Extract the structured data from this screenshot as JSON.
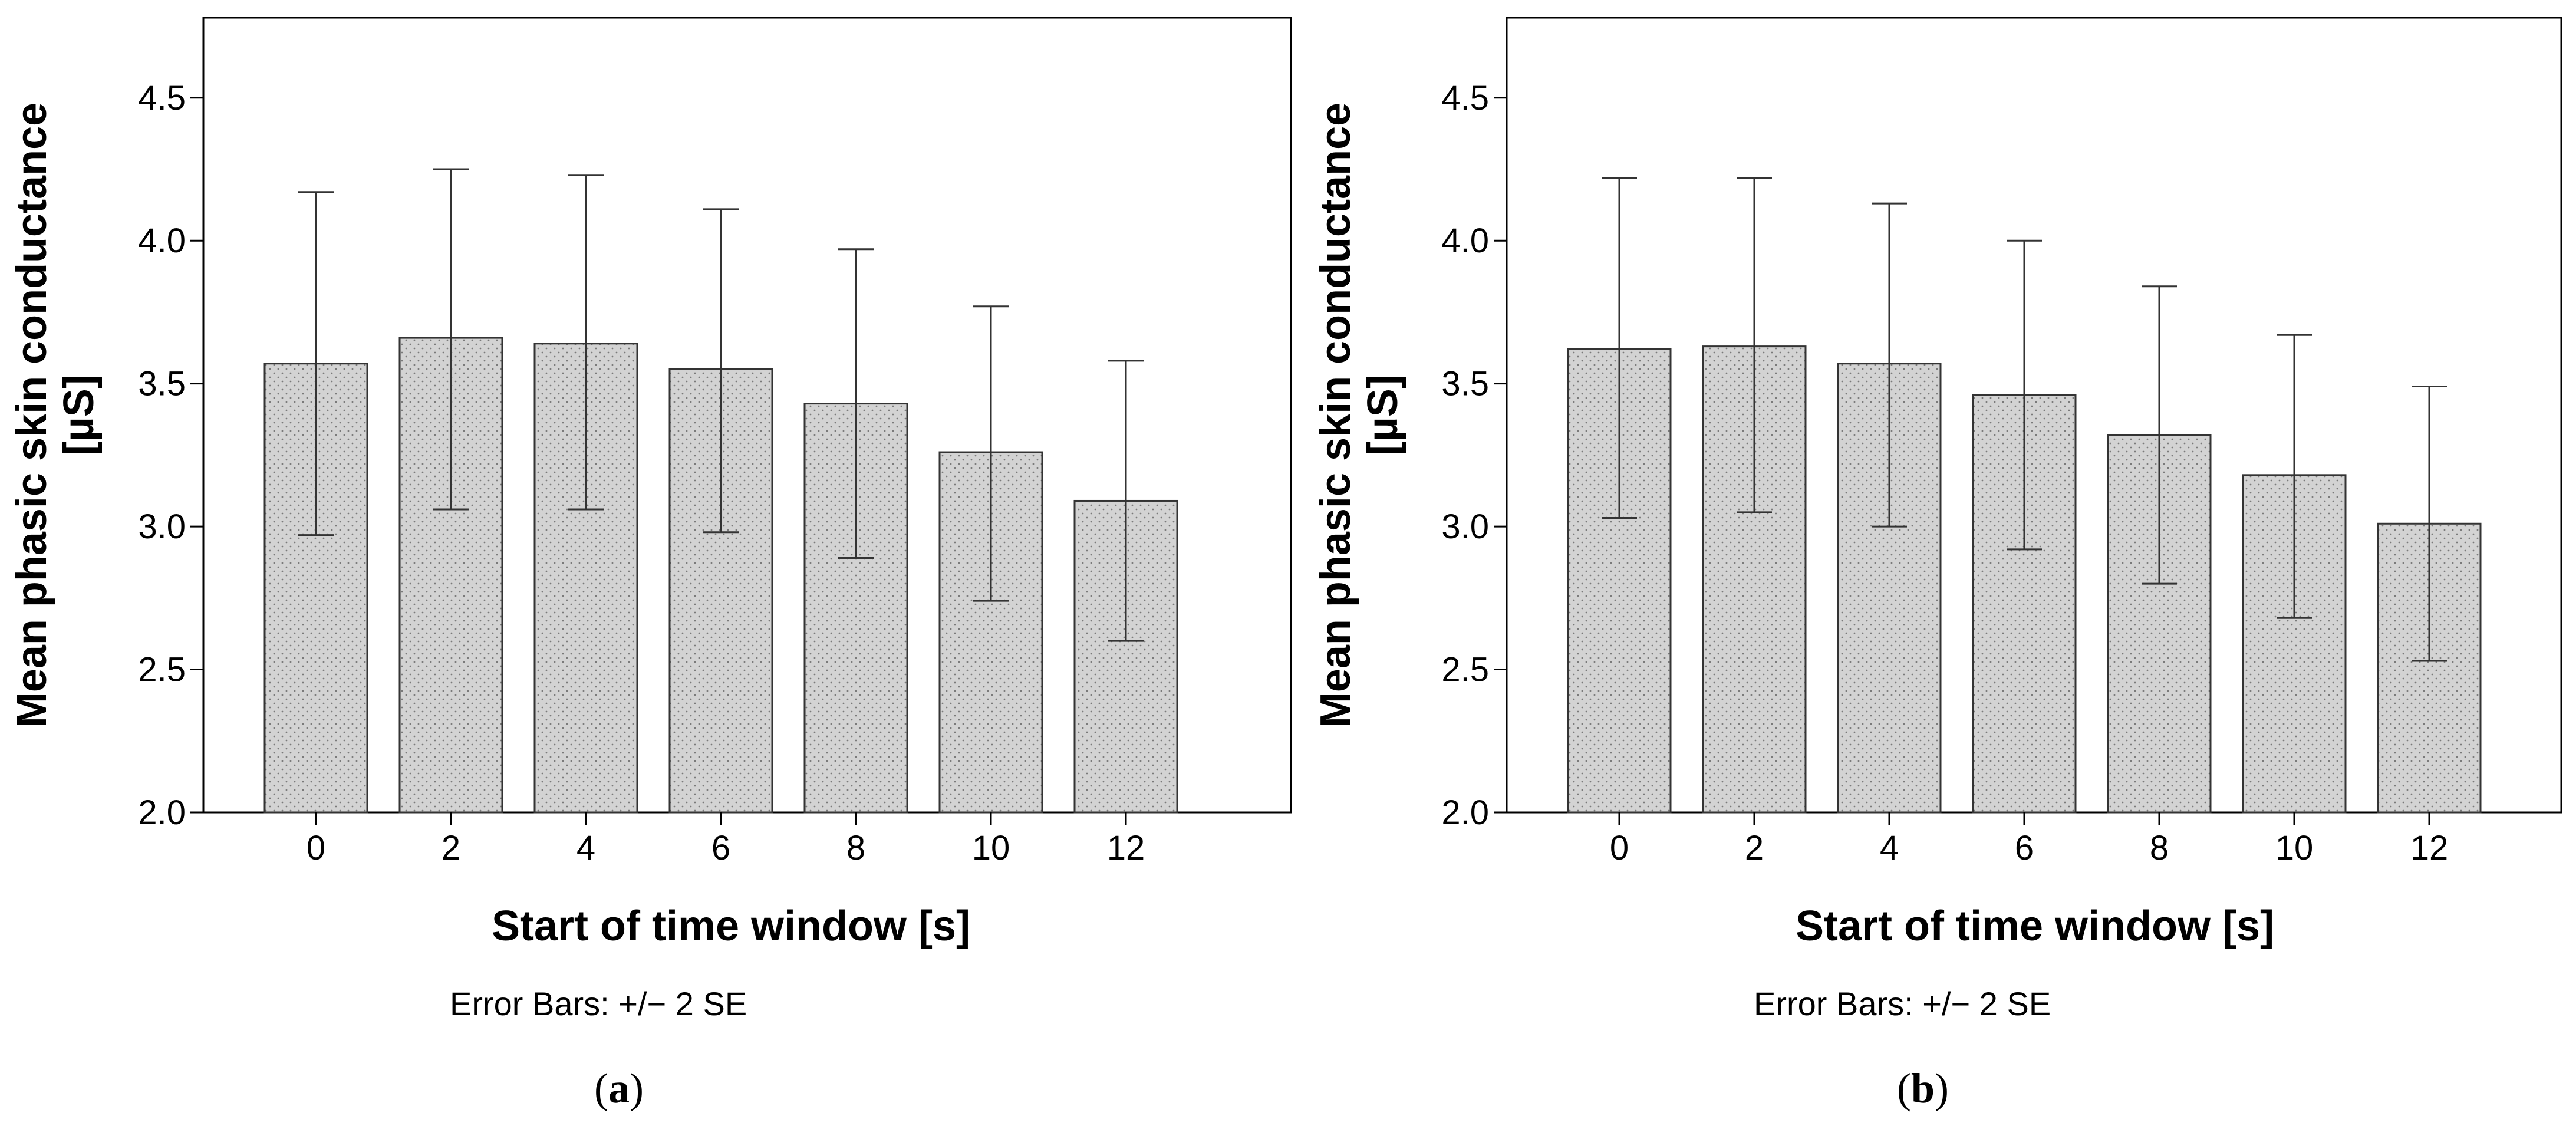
{
  "chart_data": [
    {
      "type": "bar",
      "panel_label": "a",
      "categories": [
        "0",
        "2",
        "4",
        "6",
        "8",
        "10",
        "12"
      ],
      "values": [
        3.57,
        3.66,
        3.64,
        3.55,
        3.43,
        3.26,
        3.09
      ],
      "error_upper": [
        4.17,
        4.25,
        4.23,
        4.11,
        3.97,
        3.77,
        3.58
      ],
      "error_lower": [
        2.97,
        3.06,
        3.06,
        2.98,
        2.89,
        2.74,
        2.6
      ],
      "ylim": [
        2.0,
        4.78
      ],
      "yticks": [
        "2.0",
        "2.5",
        "3.0",
        "3.5",
        "4.0",
        "4.5"
      ],
      "xlabel": "Start of time window [s]",
      "ylabel": [
        "Mean phasic skin conductance",
        "[µS]"
      ],
      "note": "Error Bars: +/− 2 SE"
    },
    {
      "type": "bar",
      "panel_label": "b",
      "categories": [
        "0",
        "2",
        "4",
        "6",
        "8",
        "10",
        "12"
      ],
      "values": [
        3.62,
        3.63,
        3.57,
        3.46,
        3.32,
        3.18,
        3.01
      ],
      "error_upper": [
        4.22,
        4.22,
        4.13,
        4.0,
        3.84,
        3.67,
        3.49
      ],
      "error_lower": [
        3.03,
        3.05,
        3.0,
        2.92,
        2.8,
        2.68,
        2.53
      ],
      "ylim": [
        2.0,
        4.78
      ],
      "yticks": [
        "2.0",
        "2.5",
        "3.0",
        "3.5",
        "4.0",
        "4.5"
      ],
      "xlabel": "Start of time window [s]",
      "ylabel": [
        "Mean phasic skin conductance",
        "[µS]"
      ],
      "note": "Error Bars: +/− 2 SE"
    }
  ]
}
